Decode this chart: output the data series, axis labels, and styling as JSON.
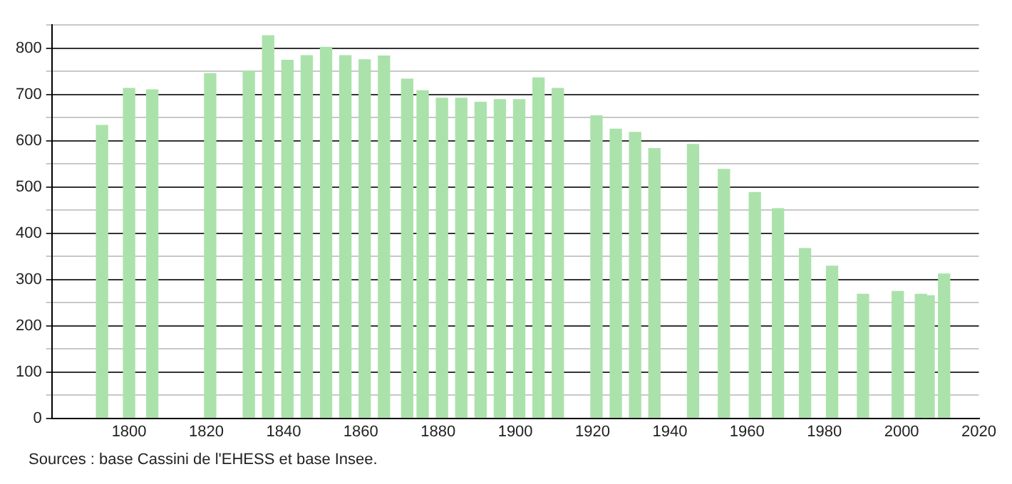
{
  "chart_data": {
    "type": "bar",
    "color": "#abe2ab",
    "x": [
      1793,
      1800,
      1806,
      1821,
      1831,
      1836,
      1841,
      1846,
      1851,
      1856,
      1861,
      1866,
      1872,
      1876,
      1881,
      1886,
      1891,
      1896,
      1901,
      1906,
      1911,
      1921,
      1926,
      1931,
      1936,
      1946,
      1954,
      1962,
      1968,
      1975,
      1982,
      1990,
      1999,
      2005,
      2007,
      2011
    ],
    "values": [
      633,
      713,
      710,
      745,
      751,
      827,
      774,
      784,
      802,
      784,
      775,
      783,
      733,
      708,
      692,
      692,
      683,
      689,
      689,
      736,
      713,
      654,
      625,
      618,
      583,
      592,
      538,
      488,
      453,
      367,
      329,
      268,
      274,
      268,
      265,
      312
    ],
    "xlim": [
      1780,
      2020
    ],
    "xticks": [
      1800,
      1820,
      1840,
      1860,
      1880,
      1900,
      1920,
      1940,
      1960,
      1980,
      2000,
      2020
    ],
    "ylim": [
      0,
      850
    ],
    "yticks": [
      0,
      {
        "value": 50,
        "label": null
      },
      100,
      {
        "value": 150,
        "label": null
      },
      200,
      {
        "value": 250,
        "label": null
      },
      300,
      {
        "value": 350,
        "label": null
      },
      400,
      {
        "value": 450,
        "label": null
      },
      500,
      {
        "value": 550,
        "label": null
      },
      600,
      {
        "value": 650,
        "label": null
      },
      700,
      {
        "value": 750,
        "label": null
      },
      800,
      {
        "value": 850,
        "label": null
      }
    ],
    "grid": "y",
    "legend": false,
    "annotations": [
      "Sources : base Cassini de l'EHESS et base Insee."
    ]
  }
}
